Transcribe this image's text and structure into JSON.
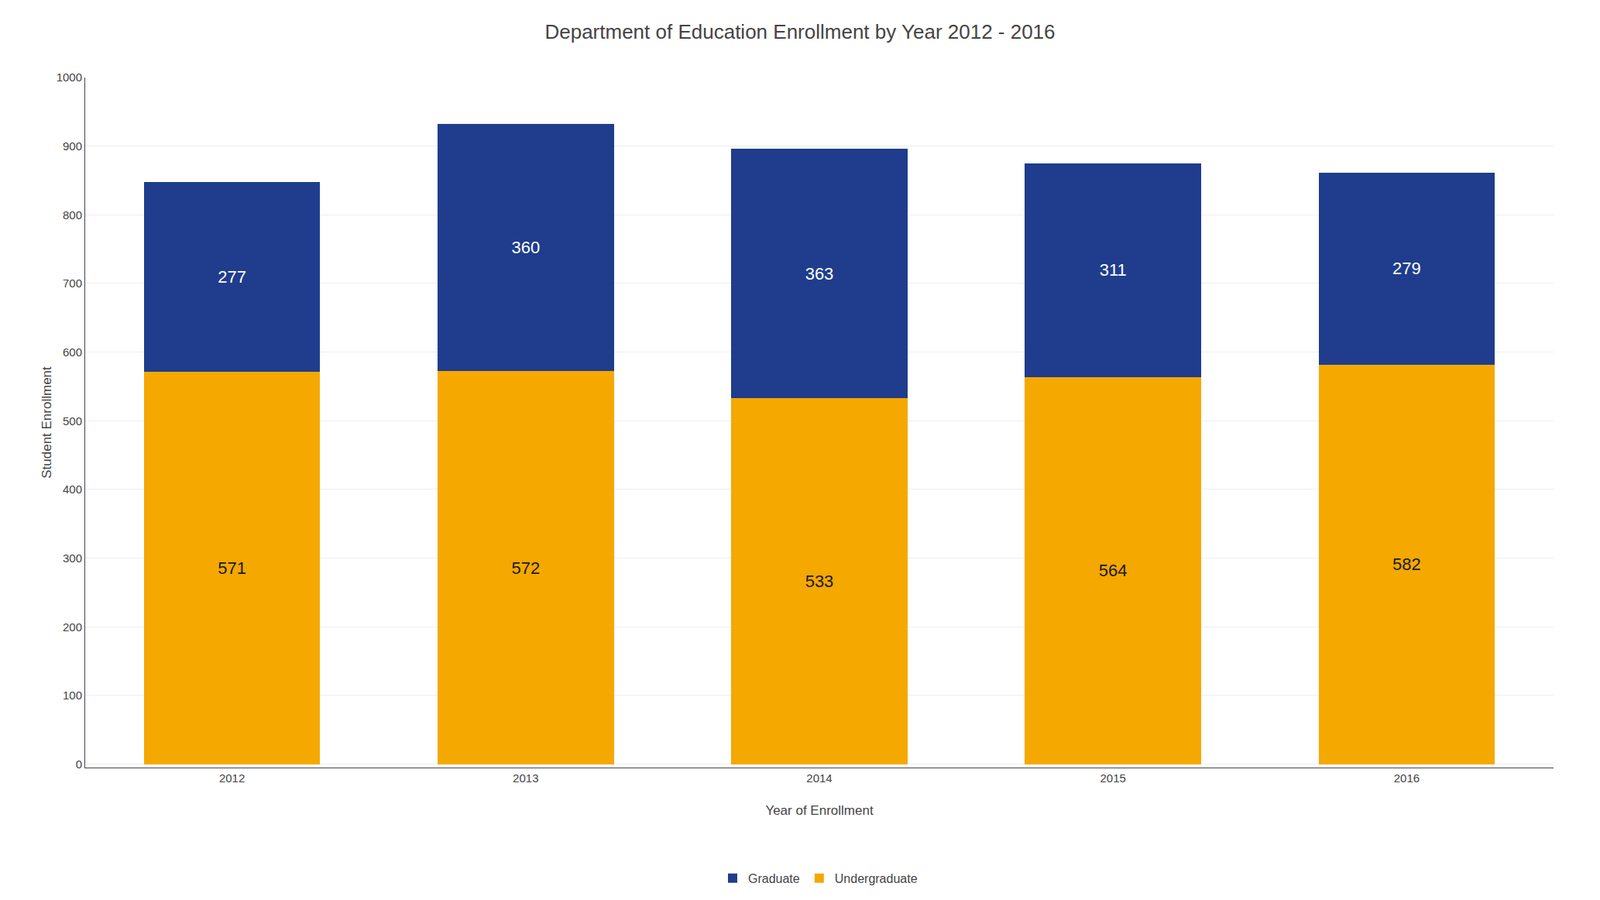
{
  "chart_data": {
    "type": "bar",
    "stacked": true,
    "title": "Department of Education Enrollment by Year 2012 - 2016",
    "x_label": "Year of Enrollment",
    "y_label": "Student Enrollment",
    "categories": [
      "2012",
      "2013",
      "2014",
      "2015",
      "2016"
    ],
    "series": [
      {
        "name": "Undergraduate",
        "color": "#F5A800",
        "values": [
          571,
          572,
          533,
          564,
          582
        ]
      },
      {
        "name": "Graduate",
        "color": "#1F3D8C",
        "values": [
          277,
          360,
          363,
          311,
          279
        ]
      }
    ],
    "ylim": [
      -5,
      1000
    ],
    "yticks": [
      0,
      100,
      200,
      300,
      400,
      500,
      600,
      700,
      800,
      900,
      1000
    ],
    "grid": true,
    "legend": "bottom",
    "data_labels": true
  }
}
